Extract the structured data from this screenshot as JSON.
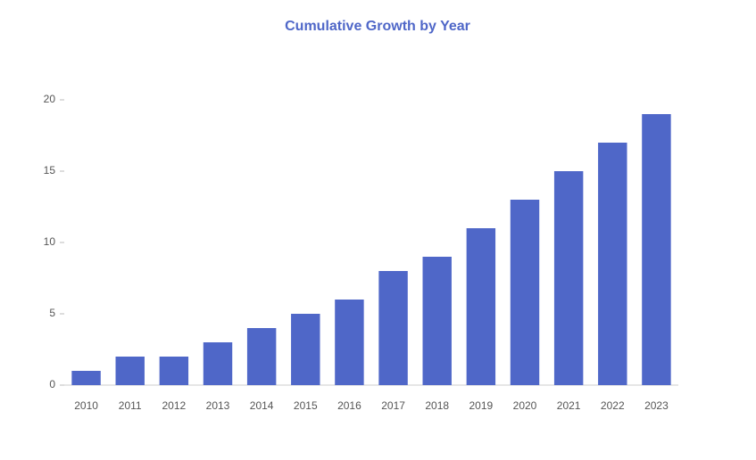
{
  "chart_data": {
    "type": "bar",
    "title": "Cumulative Growth by Year",
    "categories": [
      "2010",
      "2011",
      "2012",
      "2013",
      "2014",
      "2015",
      "2016",
      "2017",
      "2018",
      "2019",
      "2020",
      "2021",
      "2022",
      "2023"
    ],
    "values": [
      1,
      2,
      2,
      3,
      4,
      5,
      6,
      8,
      9,
      11,
      13,
      15,
      17,
      19
    ],
    "color": "#4f67c8",
    "ylim": [
      0,
      22
    ],
    "yticks": [
      0,
      5,
      10,
      15,
      20
    ],
    "grid": false
  }
}
